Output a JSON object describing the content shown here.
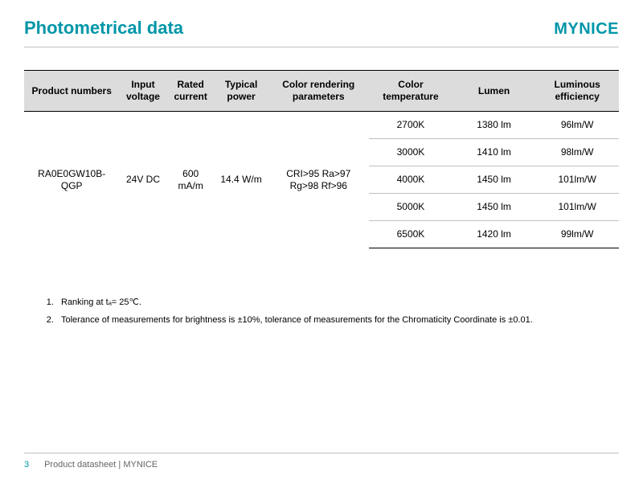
{
  "header": {
    "title": "Photometrical data",
    "brand": "MYNICE"
  },
  "table": {
    "columns": [
      "Product numbers",
      "Input\nvoltage",
      "Rated\ncurrent",
      "Typical\npower",
      "Color rendering\nparameters",
      "Color\ntemperature",
      "Lumen",
      "Luminous\nefficiency"
    ],
    "col_widths_pct": [
      16,
      8,
      8,
      9,
      17,
      14,
      14,
      14
    ],
    "shared": {
      "product_number": "RA0E0GW10B-QGP",
      "input_voltage": "24V DC",
      "rated_current": "600\nmA/m",
      "typical_power": "14.4 W/m",
      "cri_params": "CRI>95  Ra>97\nRg>98  Rf>96"
    },
    "variants": [
      {
        "color_temp": "2700K",
        "lumen": "1380 lm",
        "efficacy": "96lm/W"
      },
      {
        "color_temp": "3000K",
        "lumen": "1410 lm",
        "efficacy": "98lm/W"
      },
      {
        "color_temp": "4000K",
        "lumen": "1450 lm",
        "efficacy": "101lm/W"
      },
      {
        "color_temp": "5000K",
        "lumen": "1450 lm",
        "efficacy": "101lm/W"
      },
      {
        "color_temp": "6500K",
        "lumen": "1420 lm",
        "efficacy": "99lm/W"
      }
    ],
    "header_bg": "#dcdcdc",
    "border_color": "#000000",
    "inner_border_color": "#bfbfbf"
  },
  "notes": {
    "items": [
      "Ranking at tₐ= 25℃.",
      "Tolerance of measurements for brightness is ±10%, tolerance of measurements for the Chromaticity Coordinate is ±0.01."
    ]
  },
  "footer": {
    "page_number": "3",
    "text": "Product datasheet | MYNICE"
  },
  "colors": {
    "accent": "#0096a8",
    "rule": "#bfbfbf",
    "footer_text": "#666666",
    "background": "#ffffff"
  }
}
